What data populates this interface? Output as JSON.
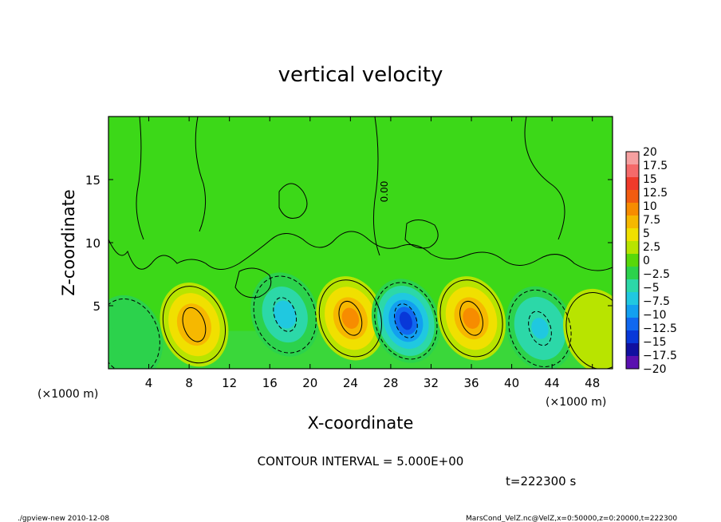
{
  "chart_data": {
    "type": "heatmap",
    "title": "vertical velocity",
    "xlabel": "X-coordinate",
    "ylabel": "Z-coordinate",
    "x_unit_left": "(×1000 m)",
    "x_unit_right": "(×1000 m)",
    "xlim": [
      0,
      50
    ],
    "ylim": [
      0,
      20
    ],
    "x_ticks": [
      "4",
      "8",
      "12",
      "16",
      "20",
      "24",
      "28",
      "32",
      "36",
      "40",
      "44",
      "48"
    ],
    "x_tick_values": [
      4,
      8,
      12,
      16,
      20,
      24,
      28,
      32,
      36,
      40,
      44,
      48
    ],
    "y_ticks": [
      "5",
      "10",
      "15"
    ],
    "y_tick_values": [
      5,
      10,
      15
    ],
    "contour_interval_text": "CONTOUR INTERVAL = 5.000E+00",
    "time_text": "t=222300 s",
    "contour_label": "0.00",
    "footer_left": "./gpview-new  2010-12-08",
    "footer_right": "MarsCond_VelZ.nc@VelZ,x=0:50000,z=0:20000,t=222300",
    "colorbar": {
      "levels": [
        "20",
        "17.5",
        "15",
        "12.5",
        "10",
        "7.5",
        "5",
        "2.5",
        "0",
        "-2.5",
        "-5",
        "-7.5",
        "-10",
        "-12.5",
        "-15",
        "-17.5",
        "-20"
      ],
      "colors": [
        "#f6a0a0",
        "#f56a6a",
        "#ef3a2a",
        "#f25c10",
        "#f78c00",
        "#f6b800",
        "#f0e000",
        "#b8e400",
        "#58d80a",
        "#2cd24c",
        "#2cd8a8",
        "#20c8e0",
        "#12a0f0",
        "#1068f0",
        "#0838d8",
        "#1010a0",
        "#5a10b0"
      ]
    },
    "features": [
      {
        "x": 8.5,
        "z": 3.5,
        "peak": 8.5,
        "sign": "up"
      },
      {
        "x": 17.5,
        "z": 4.3,
        "peak": -7.0,
        "sign": "down"
      },
      {
        "x": 24.0,
        "z": 4.0,
        "peak": 9.5,
        "sign": "up"
      },
      {
        "x": 29.5,
        "z": 3.8,
        "peak": -14.0,
        "sign": "down"
      },
      {
        "x": 36.0,
        "z": 4.0,
        "peak": 9.0,
        "sign": "up"
      },
      {
        "x": 42.8,
        "z": 3.2,
        "peak": -8.0,
        "sign": "down"
      },
      {
        "x": 2.0,
        "z": 2.5,
        "peak": -3.5,
        "sign": "down"
      },
      {
        "x": 48.5,
        "z": 3.0,
        "peak": 3.5,
        "sign": "up"
      }
    ]
  }
}
